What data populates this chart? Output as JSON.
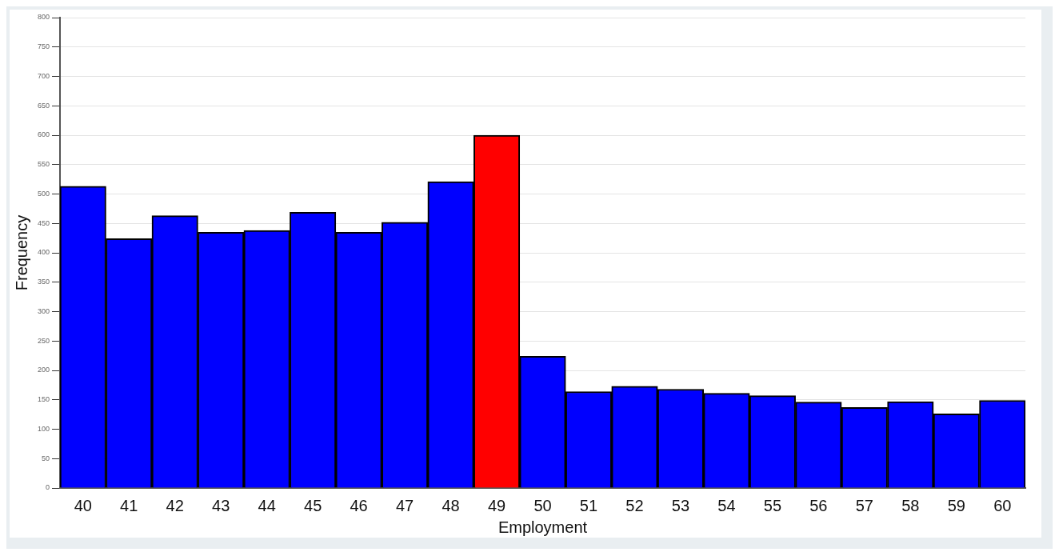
{
  "chart_data": {
    "type": "bar",
    "xlabel": "Employment",
    "ylabel": "Frequency",
    "categories": [
      "40",
      "41",
      "42",
      "43",
      "44",
      "45",
      "46",
      "47",
      "48",
      "49",
      "50",
      "51",
      "52",
      "53",
      "54",
      "55",
      "56",
      "57",
      "58",
      "59",
      "60"
    ],
    "values": [
      513,
      424,
      463,
      435,
      438,
      469,
      435,
      452,
      521,
      600,
      224,
      164,
      173,
      168,
      161,
      157,
      146,
      137,
      147,
      126,
      149
    ],
    "colors": [
      "#0000ff",
      "#0000ff",
      "#0000ff",
      "#0000ff",
      "#0000ff",
      "#0000ff",
      "#0000ff",
      "#0000ff",
      "#0000ff",
      "#ff0000",
      "#0000ff",
      "#0000ff",
      "#0000ff",
      "#0000ff",
      "#0000ff",
      "#0000ff",
      "#0000ff",
      "#0000ff",
      "#0000ff",
      "#0000ff",
      "#0000ff"
    ],
    "ylim": [
      0,
      800
    ],
    "yticks": [
      0,
      50,
      100,
      150,
      200,
      250,
      300,
      350,
      400,
      450,
      500,
      550,
      600,
      650,
      700,
      750,
      800
    ],
    "grid": "y",
    "legend": false
  }
}
